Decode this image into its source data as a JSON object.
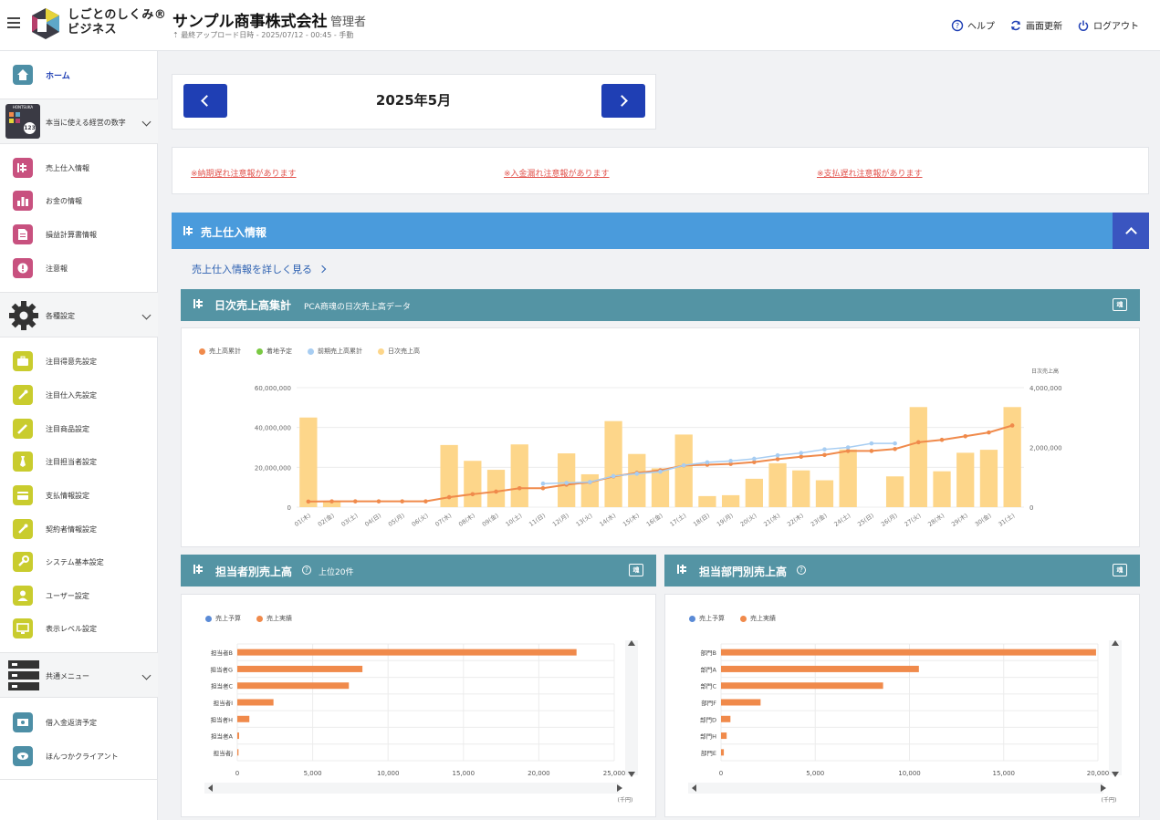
{
  "header": {
    "logo_text_line1": "しごとのしくみ®",
    "logo_text_line2": "ビジネス",
    "company": "サンプル商事株式会社",
    "role": "管理者",
    "upload_status": "最終アップロード日時 - 2025/07/12 - 00:45 - 手動",
    "links": [
      "ヘルプ",
      "画面更新",
      "ログアウト"
    ]
  },
  "sidebar": {
    "home": "ホーム",
    "group1": "本当に使える経営の数字",
    "group1_badge": "HONTSUKA",
    "group1_items": [
      "売上仕入情報",
      "お金の情報",
      "損益計算書情報",
      "注意報"
    ],
    "group2": "各種設定",
    "group2_items": [
      "注目得意先設定",
      "注目仕入先設定",
      "注目商品設定",
      "注目担当者設定",
      "支払情報設定",
      "契約者情報設定",
      "システム基本設定",
      "ユーザー設定",
      "表示レベル設定"
    ],
    "group3": "共通メニュー",
    "group3_items": [
      "借入金返済予定",
      "ほんつかクライアント"
    ]
  },
  "colors": {
    "accent_blue": "#4a9bdc",
    "nav_blue": "#1f3fb4",
    "card_teal": "#5494a4",
    "alert_red": "#e2544e",
    "series_cumulative": "#f08a4b",
    "series_forecast": "#7ac943",
    "series_prev": "#a7cdf2",
    "series_daily": "#fdd68a",
    "series_budget": "#5b8bd6",
    "series_actual": "#f08a4b"
  },
  "main": {
    "month": "2025年5月",
    "alerts": [
      "※納期遅れ注意報があります",
      "※入金漏れ注意報があります",
      "※支払遅れ注意報があります"
    ],
    "section_title": "売上仕入情報",
    "more_link": "売上仕入情報を詳しく見る"
  },
  "daily_card": {
    "title": "日次売上高集計",
    "subtitle": "PCA商魂の日次売上高データ",
    "badge": "魂"
  },
  "staff_card": {
    "title": "担当者別売上高",
    "subtitle": "上位20件",
    "badge": "魂"
  },
  "dept_card": {
    "title": "担当部門別売上高",
    "badge": "魂"
  },
  "chart_data": [
    {
      "type": "bar",
      "legend": [
        "売上高累計",
        "着地予定",
        "前期売上高累計",
        "日次売上高"
      ],
      "categories": [
        "01(木)",
        "02(金)",
        "03(土)",
        "04(日)",
        "05(月)",
        "06(火)",
        "07(水)",
        "08(木)",
        "09(金)",
        "10(土)",
        "11(日)",
        "12(月)",
        "13(火)",
        "14(水)",
        "15(木)",
        "16(金)",
        "17(土)",
        "18(日)",
        "19(月)",
        "20(火)",
        "21(水)",
        "22(木)",
        "23(金)",
        "24(土)",
        "25(日)",
        "26(月)",
        "27(火)",
        "28(水)",
        "29(木)",
        "30(金)",
        "31(土)"
      ],
      "y_left_ticks": [
        "0",
        "20,000,000",
        "40,000,000",
        "60,000,000"
      ],
      "y_left_range": [
        0,
        60000000
      ],
      "y_right_label": "日次売上高",
      "y_right_ticks": [
        "0",
        "2,000,000",
        "4,000,000"
      ],
      "y_right_range": [
        0,
        4000000
      ],
      "series": [
        {
          "name": "日次売上高",
          "axis": "right",
          "values": [
            3000000,
            200000,
            0,
            0,
            0,
            0,
            2080000,
            1550000,
            1250000,
            2100000,
            0,
            1800000,
            1100000,
            2880000,
            1780000,
            1300000,
            2430000,
            370000,
            400000,
            950000,
            1470000,
            1230000,
            900000,
            1930000,
            0,
            1030000,
            3350000,
            1200000,
            1820000,
            1920000,
            3350000
          ]
        },
        {
          "name": "売上高累計",
          "axis": "left",
          "values": [
            2800000,
            2900000,
            2900000,
            2900000,
            2900000,
            2900000,
            5000000,
            6500000,
            7800000,
            9500000,
            9500000,
            11300000,
            12500000,
            15400000,
            17200000,
            18500000,
            20900000,
            21300000,
            21700000,
            22600000,
            24100000,
            25300000,
            26200000,
            28200000,
            28200000,
            29200000,
            32600000,
            33800000,
            35600000,
            37500000,
            41000000
          ]
        },
        {
          "name": "前期売上高累計",
          "axis": "left",
          "values": [
            null,
            null,
            null,
            null,
            null,
            null,
            null,
            null,
            null,
            null,
            11800000,
            12200000,
            12600000,
            15600000,
            16800000,
            17800000,
            21000000,
            22500000,
            23200000,
            24300000,
            26000000,
            27200000,
            29000000,
            30000000,
            32000000,
            32000000,
            null,
            null,
            null,
            null,
            null
          ]
        }
      ]
    },
    {
      "type": "bar",
      "orientation": "horizontal",
      "legend": [
        "売上予算",
        "売上実績"
      ],
      "categories": [
        "担当者B",
        "担当者G",
        "担当者C",
        "担当者I",
        "担当者H",
        "担当者A",
        "担当者J"
      ],
      "series": [
        {
          "name": "売上実績",
          "values": [
            22500,
            8300,
            7400,
            2400,
            800,
            120,
            80
          ]
        }
      ],
      "x_ticks": [
        "0",
        "5,000",
        "10,000",
        "15,000",
        "20,000",
        "25,000"
      ],
      "xlim": [
        0,
        25000
      ],
      "unit": "(千円)"
    },
    {
      "type": "bar",
      "orientation": "horizontal",
      "legend": [
        "売上予算",
        "売上実績"
      ],
      "categories": [
        "部門B",
        "部門A",
        "部門C",
        "部門F",
        "部門D",
        "部門H",
        "部門E"
      ],
      "series": [
        {
          "name": "売上実績",
          "values": [
            19900,
            10500,
            8600,
            2100,
            500,
            300,
            150
          ]
        }
      ],
      "x_ticks": [
        "0",
        "5,000",
        "10,000",
        "15,000",
        "20,000"
      ],
      "xlim": [
        0,
        20000
      ],
      "unit": "(千円)"
    }
  ]
}
